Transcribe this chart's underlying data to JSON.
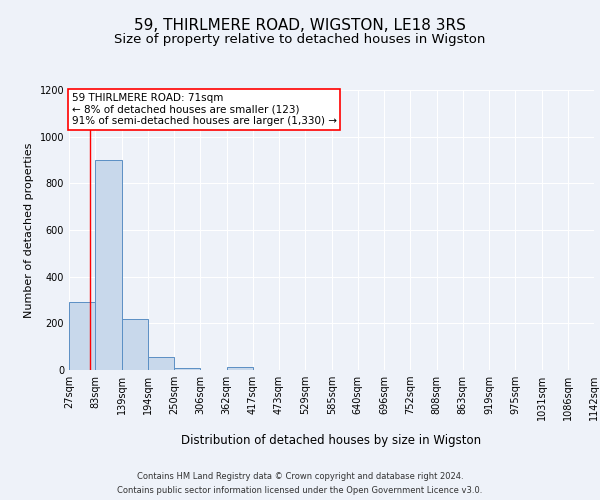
{
  "title": "59, THIRLMERE ROAD, WIGSTON, LE18 3RS",
  "subtitle": "Size of property relative to detached houses in Wigston",
  "xlabel": "Distribution of detached houses by size in Wigston",
  "ylabel": "Number of detached properties",
  "footer_line1": "Contains HM Land Registry data © Crown copyright and database right 2024.",
  "footer_line2": "Contains public sector information licensed under the Open Government Licence v3.0.",
  "bin_edges": [
    27,
    83,
    139,
    194,
    250,
    306,
    362,
    417,
    473,
    529,
    585,
    640,
    696,
    752,
    808,
    863,
    919,
    975,
    1031,
    1086,
    1142
  ],
  "bar_heights": [
    290,
    900,
    220,
    55,
    10,
    0,
    15,
    0,
    0,
    0,
    0,
    0,
    0,
    0,
    0,
    0,
    0,
    0,
    0,
    0
  ],
  "bar_color": "#c8d8eb",
  "bar_edge_color": "#5b8fc4",
  "property_sqm": 71,
  "annotation_line1": "59 THIRLMERE ROAD: 71sqm",
  "annotation_line2": "← 8% of detached houses are smaller (123)",
  "annotation_line3": "91% of semi-detached houses are larger (1,330) →",
  "annotation_box_color": "white",
  "annotation_box_edge_color": "red",
  "vline_color": "red",
  "ylim": [
    0,
    1200
  ],
  "yticks": [
    0,
    200,
    400,
    600,
    800,
    1000,
    1200
  ],
  "background_color": "#eef2f9",
  "axes_background_color": "#eef2f9",
  "grid_color": "white",
  "title_fontsize": 11,
  "subtitle_fontsize": 9.5,
  "xlabel_fontsize": 8.5,
  "ylabel_fontsize": 8,
  "annotation_fontsize": 7.5,
  "footer_fontsize": 6.0,
  "tick_fontsize": 7
}
